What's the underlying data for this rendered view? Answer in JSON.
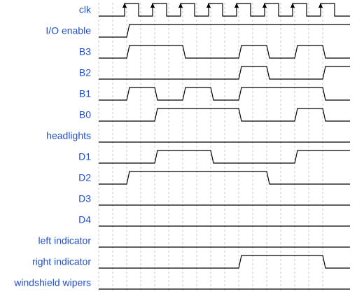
{
  "diagram": {
    "type": "timing-diagram",
    "colors": {
      "label": "#1f4fd1",
      "wave": "#000000",
      "grid": "#c8c8c8",
      "background": "#ffffff"
    },
    "clock": {
      "name": "clk",
      "cycles": 8,
      "rising_edge_arrows": true
    },
    "signals": [
      {
        "id": "io-enable",
        "name": "I/O enable",
        "levels": [
          1,
          1,
          1,
          1,
          1,
          1,
          1,
          1
        ]
      },
      {
        "id": "b3",
        "name": "B3",
        "levels": [
          1,
          1,
          0,
          0,
          1,
          0,
          1,
          0
        ]
      },
      {
        "id": "b2",
        "name": "B2",
        "levels": [
          0,
          0,
          0,
          0,
          1,
          0,
          0,
          1
        ]
      },
      {
        "id": "b1",
        "name": "B1",
        "levels": [
          1,
          0,
          1,
          0,
          1,
          1,
          1,
          0
        ]
      },
      {
        "id": "b0",
        "name": "B0",
        "levels": [
          0,
          1,
          1,
          1,
          0,
          0,
          1,
          0
        ]
      },
      {
        "id": "headlights",
        "name": "headlights",
        "levels": [
          0,
          0,
          0,
          0,
          0,
          0,
          0,
          0
        ]
      },
      {
        "id": "d1",
        "name": "D1",
        "levels": [
          0,
          1,
          1,
          0,
          0,
          0,
          1,
          1
        ]
      },
      {
        "id": "d2",
        "name": "D2",
        "levels": [
          1,
          1,
          1,
          1,
          1,
          0,
          0,
          0
        ]
      },
      {
        "id": "d3",
        "name": "D3",
        "levels": [
          0,
          0,
          0,
          0,
          0,
          0,
          0,
          0
        ]
      },
      {
        "id": "d4",
        "name": "D4",
        "levels": [
          0,
          0,
          0,
          0,
          0,
          0,
          0,
          0
        ]
      },
      {
        "id": "left-indicator",
        "name": "left indicator",
        "levels": [
          0,
          0,
          0,
          0,
          0,
          0,
          0,
          0
        ]
      },
      {
        "id": "right-indicator",
        "name": "right indicator",
        "levels": [
          0,
          0,
          0,
          0,
          1,
          1,
          1,
          0
        ]
      },
      {
        "id": "windshield-wipers",
        "name": "windshield wipers",
        "levels": [
          0,
          0,
          0,
          0,
          0,
          0,
          0,
          0
        ]
      }
    ]
  }
}
